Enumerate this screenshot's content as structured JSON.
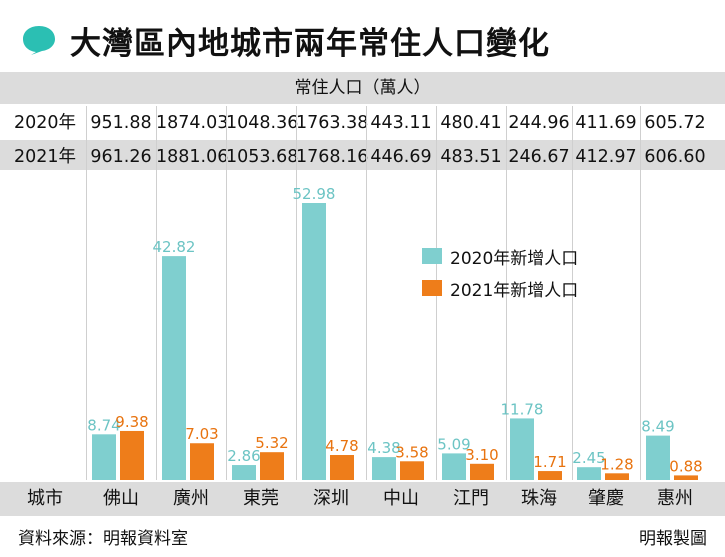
{
  "header": {
    "title": "大灣區內地城市兩年常住人口變化"
  },
  "table": {
    "caption": "常住人口（萬人）",
    "rows": [
      {
        "label": "2020年",
        "values": [
          "951.88",
          "1874.03",
          "1048.36",
          "1763.38",
          "443.11",
          "480.41",
          "244.96",
          "411.69",
          "605.72"
        ]
      },
      {
        "label": "2021年",
        "values": [
          "961.26",
          "1881.06",
          "1053.68",
          "1768.16",
          "446.69",
          "483.51",
          "246.67",
          "412.97",
          "606.60"
        ]
      }
    ]
  },
  "axis": {
    "city_label": "城市"
  },
  "chart_data": {
    "type": "bar",
    "categories": [
      "佛山",
      "廣州",
      "東莞",
      "深圳",
      "中山",
      "江門",
      "珠海",
      "肇慶",
      "惠州"
    ],
    "series": [
      {
        "name": "2020年新增人口",
        "color": "#7fcfcf",
        "values": [
          8.74,
          42.82,
          2.86,
          52.98,
          4.38,
          5.09,
          11.78,
          2.45,
          8.49
        ]
      },
      {
        "name": "2021年新增人口",
        "color": "#ee7d1a",
        "values": [
          9.38,
          7.03,
          5.32,
          4.78,
          3.58,
          3.1,
          1.71,
          1.28,
          0.88
        ]
      }
    ],
    "data_labels": {
      "2020": [
        "8.74",
        "42.82",
        "2.86",
        "52.98",
        "4.38",
        "5.09",
        "11.78",
        "2.45",
        "8.49"
      ],
      "2021": [
        "9.38",
        "7.03",
        "5.32",
        "4.78",
        "3.58",
        "3.10",
        "1.71",
        "1.28",
        "0.88"
      ]
    },
    "ylim": [
      0,
      55
    ],
    "legend": "middle-right",
    "grid": false
  },
  "footer": {
    "source": "資料來源：明報資料室",
    "credit": "明報製圖"
  },
  "colors": {
    "accent": "#2bbfb3",
    "band": "#dcdcdc",
    "teal": "#7fcfcf",
    "orange": "#ee7d1a"
  }
}
